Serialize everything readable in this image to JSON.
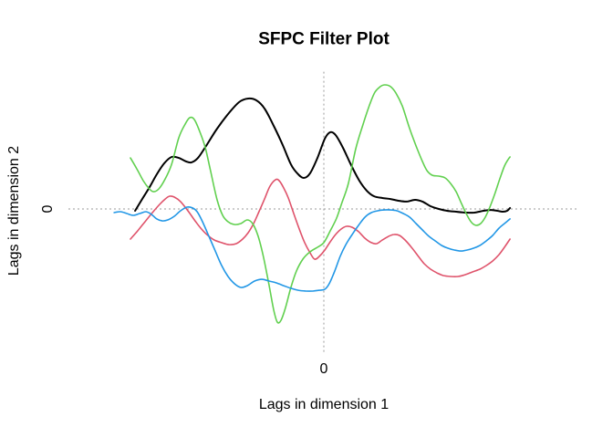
{
  "window": {
    "background": "#ffffff"
  },
  "chart_data": {
    "type": "line",
    "title": "SFPC Filter Plot",
    "xlabel": "Lags in dimension 1",
    "ylabel": "Lags in dimension 2",
    "x_ticks": [
      {
        "value": 0,
        "label": "0"
      }
    ],
    "y_ticks": [
      {
        "value": 0,
        "label": "0"
      }
    ],
    "xlim": [
      -1,
      1
    ],
    "ylim": [
      -1.03,
      1
    ],
    "grid": false,
    "legend": "none",
    "reference_lines": {
      "h": 0,
      "v": 0,
      "style": "dotted",
      "color": "#9a9a9a"
    },
    "series": [
      {
        "name": "black",
        "color": "#000000",
        "width": 2,
        "points": [
          [
            -0.739,
            -0.013
          ],
          [
            -0.711,
            0.072
          ],
          [
            -0.682,
            0.158
          ],
          [
            -0.654,
            0.25
          ],
          [
            -0.625,
            0.329
          ],
          [
            -0.596,
            0.375
          ],
          [
            -0.568,
            0.368
          ],
          [
            -0.539,
            0.342
          ],
          [
            -0.518,
            0.336
          ],
          [
            -0.493,
            0.368
          ],
          [
            -0.461,
            0.454
          ],
          [
            -0.418,
            0.579
          ],
          [
            -0.375,
            0.684
          ],
          [
            -0.332,
            0.77
          ],
          [
            -0.296,
            0.796
          ],
          [
            -0.264,
            0.783
          ],
          [
            -0.232,
            0.724
          ],
          [
            -0.196,
            0.599
          ],
          [
            -0.161,
            0.461
          ],
          [
            -0.129,
            0.322
          ],
          [
            -0.104,
            0.257
          ],
          [
            -0.079,
            0.224
          ],
          [
            -0.054,
            0.257
          ],
          [
            -0.025,
            0.368
          ],
          [
            0.004,
            0.507
          ],
          [
            0.025,
            0.553
          ],
          [
            0.046,
            0.533
          ],
          [
            0.075,
            0.441
          ],
          [
            0.107,
            0.316
          ],
          [
            0.139,
            0.204
          ],
          [
            0.168,
            0.132
          ],
          [
            0.196,
            0.092
          ],
          [
            0.229,
            0.079
          ],
          [
            0.261,
            0.072
          ],
          [
            0.293,
            0.059
          ],
          [
            0.325,
            0.053
          ],
          [
            0.357,
            0.066
          ],
          [
            0.386,
            0.053
          ],
          [
            0.418,
            0.02
          ],
          [
            0.45,
            0.0
          ],
          [
            0.482,
            -0.013
          ],
          [
            0.518,
            -0.02
          ],
          [
            0.554,
            -0.026
          ],
          [
            0.589,
            -0.026
          ],
          [
            0.625,
            -0.013
          ],
          [
            0.654,
            -0.007
          ],
          [
            0.679,
            -0.013
          ],
          [
            0.7,
            -0.02
          ],
          [
            0.718,
            -0.013
          ],
          [
            0.729,
            0.007
          ]
        ]
      },
      {
        "name": "pink-red",
        "color": "#df536b",
        "width": 1.6,
        "points": [
          [
            -0.757,
            -0.217
          ],
          [
            -0.729,
            -0.158
          ],
          [
            -0.7,
            -0.092
          ],
          [
            -0.671,
            -0.026
          ],
          [
            -0.643,
            0.033
          ],
          [
            -0.621,
            0.072
          ],
          [
            -0.604,
            0.092
          ],
          [
            -0.586,
            0.086
          ],
          [
            -0.561,
            0.053
          ],
          [
            -0.532,
            -0.013
          ],
          [
            -0.504,
            -0.086
          ],
          [
            -0.479,
            -0.145
          ],
          [
            -0.454,
            -0.191
          ],
          [
            -0.429,
            -0.224
          ],
          [
            -0.4,
            -0.243
          ],
          [
            -0.371,
            -0.257
          ],
          [
            -0.343,
            -0.25
          ],
          [
            -0.318,
            -0.217
          ],
          [
            -0.296,
            -0.171
          ],
          [
            -0.275,
            -0.105
          ],
          [
            -0.254,
            -0.02
          ],
          [
            -0.232,
            0.072
          ],
          [
            -0.211,
            0.164
          ],
          [
            -0.189,
            0.211
          ],
          [
            -0.175,
            0.204
          ],
          [
            -0.157,
            0.151
          ],
          [
            -0.139,
            0.079
          ],
          [
            -0.118,
            -0.033
          ],
          [
            -0.096,
            -0.145
          ],
          [
            -0.075,
            -0.243
          ],
          [
            -0.054,
            -0.316
          ],
          [
            -0.036,
            -0.362
          ],
          [
            -0.018,
            -0.342
          ],
          [
            0.004,
            -0.296
          ],
          [
            0.025,
            -0.237
          ],
          [
            0.046,
            -0.184
          ],
          [
            0.068,
            -0.145
          ],
          [
            0.089,
            -0.125
          ],
          [
            0.111,
            -0.132
          ],
          [
            0.136,
            -0.164
          ],
          [
            0.161,
            -0.211
          ],
          [
            0.186,
            -0.243
          ],
          [
            0.207,
            -0.25
          ],
          [
            0.229,
            -0.224
          ],
          [
            0.254,
            -0.197
          ],
          [
            0.275,
            -0.184
          ],
          [
            0.296,
            -0.191
          ],
          [
            0.318,
            -0.224
          ],
          [
            0.343,
            -0.276
          ],
          [
            0.368,
            -0.336
          ],
          [
            0.393,
            -0.395
          ],
          [
            0.418,
            -0.434
          ],
          [
            0.443,
            -0.461
          ],
          [
            0.468,
            -0.48
          ],
          [
            0.496,
            -0.487
          ],
          [
            0.525,
            -0.487
          ],
          [
            0.554,
            -0.474
          ],
          [
            0.582,
            -0.454
          ],
          [
            0.611,
            -0.434
          ],
          [
            0.636,
            -0.408
          ],
          [
            0.661,
            -0.375
          ],
          [
            0.686,
            -0.329
          ],
          [
            0.707,
            -0.276
          ],
          [
            0.729,
            -0.217
          ]
        ]
      },
      {
        "name": "green",
        "color": "#61d04f",
        "width": 1.6,
        "points": [
          [
            -0.757,
            0.368
          ],
          [
            -0.732,
            0.289
          ],
          [
            -0.707,
            0.204
          ],
          [
            -0.686,
            0.151
          ],
          [
            -0.668,
            0.125
          ],
          [
            -0.646,
            0.145
          ],
          [
            -0.621,
            0.217
          ],
          [
            -0.596,
            0.322
          ],
          [
            -0.568,
            0.513
          ],
          [
            -0.543,
            0.612
          ],
          [
            -0.525,
            0.658
          ],
          [
            -0.507,
            0.645
          ],
          [
            -0.486,
            0.559
          ],
          [
            -0.464,
            0.441
          ],
          [
            -0.443,
            0.27
          ],
          [
            -0.418,
            0.066
          ],
          [
            -0.396,
            -0.046
          ],
          [
            -0.375,
            -0.092
          ],
          [
            -0.35,
            -0.112
          ],
          [
            -0.325,
            -0.105
          ],
          [
            -0.3,
            -0.079
          ],
          [
            -0.279,
            -0.105
          ],
          [
            -0.257,
            -0.197
          ],
          [
            -0.236,
            -0.349
          ],
          [
            -0.214,
            -0.553
          ],
          [
            -0.196,
            -0.73
          ],
          [
            -0.182,
            -0.816
          ],
          [
            -0.168,
            -0.803
          ],
          [
            -0.15,
            -0.711
          ],
          [
            -0.129,
            -0.566
          ],
          [
            -0.107,
            -0.447
          ],
          [
            -0.082,
            -0.362
          ],
          [
            -0.054,
            -0.309
          ],
          [
            -0.025,
            -0.276
          ],
          [
            0.0,
            -0.243
          ],
          [
            0.025,
            -0.158
          ],
          [
            0.05,
            -0.066
          ],
          [
            0.071,
            0.046
          ],
          [
            0.096,
            0.184
          ],
          [
            0.125,
            0.434
          ],
          [
            0.154,
            0.612
          ],
          [
            0.179,
            0.75
          ],
          [
            0.2,
            0.842
          ],
          [
            0.221,
            0.882
          ],
          [
            0.239,
            0.895
          ],
          [
            0.261,
            0.882
          ],
          [
            0.282,
            0.836
          ],
          [
            0.307,
            0.743
          ],
          [
            0.336,
            0.579
          ],
          [
            0.364,
            0.441
          ],
          [
            0.386,
            0.342
          ],
          [
            0.404,
            0.276
          ],
          [
            0.425,
            0.243
          ],
          [
            0.45,
            0.237
          ],
          [
            0.475,
            0.224
          ],
          [
            0.496,
            0.184
          ],
          [
            0.518,
            0.125
          ],
          [
            0.539,
            0.039
          ],
          [
            0.561,
            -0.046
          ],
          [
            0.579,
            -0.099
          ],
          [
            0.596,
            -0.118
          ],
          [
            0.614,
            -0.105
          ],
          [
            0.632,
            -0.059
          ],
          [
            0.65,
            0.013
          ],
          [
            0.671,
            0.118
          ],
          [
            0.689,
            0.217
          ],
          [
            0.707,
            0.309
          ],
          [
            0.721,
            0.355
          ],
          [
            0.729,
            0.375
          ]
        ]
      },
      {
        "name": "blue",
        "color": "#2297e6",
        "width": 1.6,
        "points": [
          [
            -0.821,
            -0.026
          ],
          [
            -0.796,
            -0.02
          ],
          [
            -0.771,
            -0.033
          ],
          [
            -0.746,
            -0.046
          ],
          [
            -0.721,
            -0.033
          ],
          [
            -0.696,
            -0.02
          ],
          [
            -0.675,
            -0.039
          ],
          [
            -0.654,
            -0.072
          ],
          [
            -0.632,
            -0.086
          ],
          [
            -0.611,
            -0.079
          ],
          [
            -0.586,
            -0.053
          ],
          [
            -0.561,
            -0.013
          ],
          [
            -0.536,
            0.013
          ],
          [
            -0.514,
            0.007
          ],
          [
            -0.496,
            -0.02
          ],
          [
            -0.475,
            -0.092
          ],
          [
            -0.45,
            -0.197
          ],
          [
            -0.425,
            -0.303
          ],
          [
            -0.4,
            -0.408
          ],
          [
            -0.375,
            -0.487
          ],
          [
            -0.35,
            -0.539
          ],
          [
            -0.325,
            -0.566
          ],
          [
            -0.3,
            -0.553
          ],
          [
            -0.271,
            -0.52
          ],
          [
            -0.243,
            -0.507
          ],
          [
            -0.214,
            -0.52
          ],
          [
            -0.186,
            -0.533
          ],
          [
            -0.157,
            -0.553
          ],
          [
            -0.129,
            -0.572
          ],
          [
            -0.1,
            -0.586
          ],
          [
            -0.071,
            -0.592
          ],
          [
            -0.043,
            -0.592
          ],
          [
            -0.018,
            -0.586
          ],
          [
            0.004,
            -0.579
          ],
          [
            0.021,
            -0.539
          ],
          [
            0.043,
            -0.447
          ],
          [
            0.064,
            -0.342
          ],
          [
            0.086,
            -0.257
          ],
          [
            0.111,
            -0.184
          ],
          [
            0.136,
            -0.118
          ],
          [
            0.161,
            -0.059
          ],
          [
            0.186,
            -0.026
          ],
          [
            0.211,
            -0.013
          ],
          [
            0.236,
            -0.007
          ],
          [
            0.261,
            -0.007
          ],
          [
            0.286,
            -0.013
          ],
          [
            0.311,
            -0.033
          ],
          [
            0.336,
            -0.059
          ],
          [
            0.361,
            -0.105
          ],
          [
            0.386,
            -0.151
          ],
          [
            0.411,
            -0.197
          ],
          [
            0.436,
            -0.23
          ],
          [
            0.461,
            -0.263
          ],
          [
            0.486,
            -0.283
          ],
          [
            0.511,
            -0.296
          ],
          [
            0.536,
            -0.303
          ],
          [
            0.561,
            -0.296
          ],
          [
            0.586,
            -0.283
          ],
          [
            0.611,
            -0.263
          ],
          [
            0.636,
            -0.23
          ],
          [
            0.661,
            -0.191
          ],
          [
            0.686,
            -0.138
          ],
          [
            0.707,
            -0.105
          ],
          [
            0.729,
            -0.072
          ]
        ]
      }
    ]
  }
}
